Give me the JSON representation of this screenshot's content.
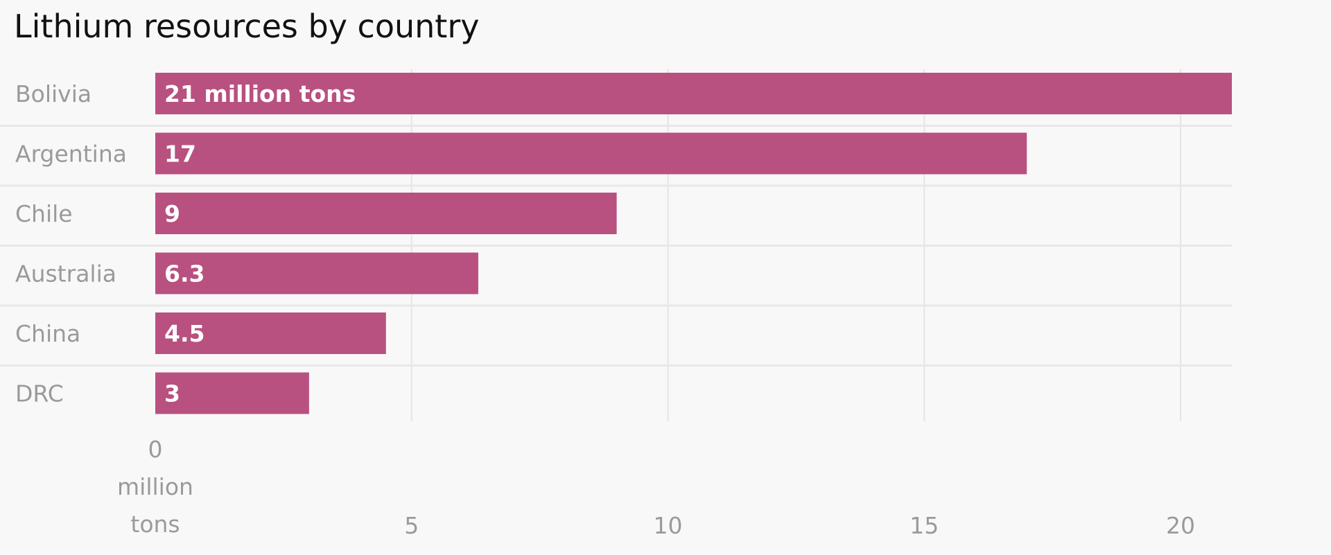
{
  "chart_data": {
    "type": "bar",
    "orientation": "horizontal",
    "title": "Lithium resources by country",
    "categories": [
      "Bolivia",
      "Argentina",
      "Chile",
      "Australia",
      "China",
      "DRC"
    ],
    "values": [
      21,
      17,
      9,
      6.3,
      4.5,
      3
    ],
    "data_labels": [
      "21 million tons",
      "17",
      "9",
      "6.3",
      "4.5",
      "3"
    ],
    "xlim": [
      0,
      21
    ],
    "x_ticks": [
      0,
      5,
      10,
      15,
      20
    ],
    "x_tick_labels": [
      "0",
      "5",
      "10",
      "15",
      "20"
    ],
    "x_zero_unit_lines": [
      "million",
      "tons"
    ],
    "grid": true,
    "legend": "none",
    "colors": {
      "bar": "#b85180",
      "background": "#f8f8f8",
      "gridline": "#e4e4e4",
      "label": "#9a9a9a",
      "title": "#111111"
    }
  }
}
